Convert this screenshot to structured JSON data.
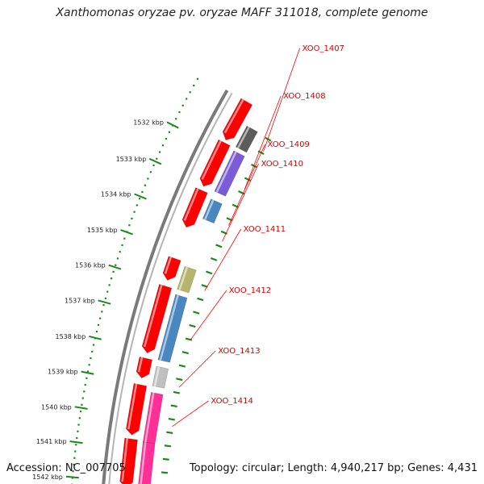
{
  "title": "Xanthomonas oryzae pv. oryzae MAFF 311018, complete genome",
  "footer": {
    "accession": "Accession: NC_007705",
    "summary": "Topology: circular; Length: 4,940,217 bp; Genes: 4,431"
  },
  "colors": {
    "cds_strand": "#ff0000",
    "kbp_dots": "#1a8a1a",
    "label_line": "#ff0000",
    "backbone": "#7a7a7a"
  },
  "ruler": [
    {
      "label": "1532 kbp"
    },
    {
      "label": "1533 kbp"
    },
    {
      "label": "1534 kbp"
    },
    {
      "label": "1535 kbp"
    },
    {
      "label": "1536 kbp"
    },
    {
      "label": "1537 kbp"
    },
    {
      "label": "1538 kbp"
    },
    {
      "label": "1539 kbp"
    },
    {
      "label": "1540 kbp"
    },
    {
      "label": "1541 kbp"
    },
    {
      "label": "1542 kbp"
    }
  ],
  "genes": [
    {
      "label": "XOO_1407",
      "color": "#5c5c5c"
    },
    {
      "label": "XOO_1408",
      "color": "#7b5cd6"
    },
    {
      "label": "XOO_1409",
      "color": "#4a86c0"
    },
    {
      "label": "XOO_1410",
      "color": ""
    },
    {
      "label": "XOO_1411",
      "color": "#b8b46c"
    },
    {
      "label": "XOO_1412",
      "color": "#4a86c0"
    },
    {
      "label": "XOO_1413",
      "color": "#c0c0c0"
    },
    {
      "label": "XOO_1414",
      "color": "#ff2f98"
    },
    {
      "label": "",
      "color": "#ff2f98"
    }
  ]
}
